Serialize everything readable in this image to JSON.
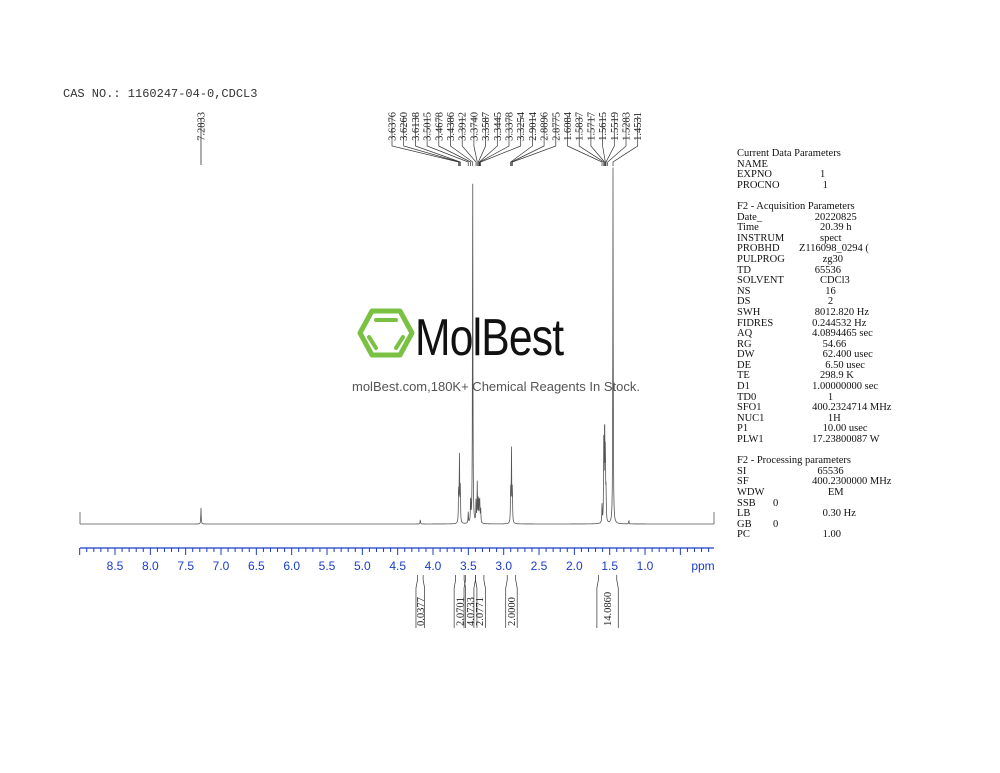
{
  "header": {
    "cas": "CAS NO.: 1160247-04-0,CDCL3"
  },
  "watermark": {
    "logo_text": "MolBest",
    "tagline": "molBest.com,180K+ Chemical Reagents In Stock.",
    "logo_color": "#7ac143"
  },
  "parameters": [
    {
      "title": "Current Data Parameters",
      "rows": [
        [
          "NAME",
          ""
        ],
        [
          "EXPNO",
          "        1"
        ],
        [
          "PROCNO",
          "         1"
        ]
      ]
    },
    {
      "title": "F2 - Acquisition Parameters",
      "rows": [
        [
          "Date_",
          "      20220825"
        ],
        [
          "Time",
          "        20.39 h"
        ],
        [
          "INSTRUM",
          "        spect"
        ],
        [
          "PROBHD",
          "Z116098_0294 ("
        ],
        [
          "PULPROG",
          "         zg30"
        ],
        [
          "TD",
          "      65536"
        ],
        [
          "SOLVENT",
          "        CDCl3"
        ],
        [
          "NS",
          "          16"
        ],
        [
          "DS",
          "           2"
        ],
        [
          "SWH",
          "      8012.820 Hz"
        ],
        [
          "FIDRES",
          "     0.244532 Hz"
        ],
        [
          "AQ",
          "     4.0894465 sec"
        ],
        [
          "RG",
          "         54.66"
        ],
        [
          "DW",
          "         62.400 usec"
        ],
        [
          "DE",
          "          6.50 usec"
        ],
        [
          "TE",
          "        298.9 K"
        ],
        [
          "D1",
          "     1.00000000 sec"
        ],
        [
          "TD0",
          "           1"
        ],
        [
          "SFO1",
          "     400.2324714 MHz"
        ],
        [
          "NUC1",
          "           1H"
        ],
        [
          "P1",
          "         10.00 usec"
        ],
        [
          "PLW1",
          "     17.23800087 W"
        ]
      ]
    },
    {
      "title": "F2 - Processing parameters",
      "rows": [
        [
          "SI",
          "       65536"
        ],
        [
          "SF",
          "     400.2300000 MHz"
        ],
        [
          "WDW",
          "           EM"
        ],
        [
          "SSB",
          "0"
        ],
        [
          "LB",
          "         0.30 Hz"
        ],
        [
          "GB",
          "0"
        ],
        [
          "PC",
          "         1.00"
        ]
      ]
    }
  ],
  "chart_data": {
    "type": "line",
    "title": "",
    "xlabel": "ppm",
    "xlim": [
      9.0,
      0.0
    ],
    "x_reversed": true,
    "grid": false,
    "axis_color": "#1a3cc8",
    "tick_labels": [
      "8.5",
      "8.0",
      "7.5",
      "7.0",
      "6.5",
      "6.0",
      "5.5",
      "5.0",
      "4.5",
      "4.0",
      "3.5",
      "3.0",
      "2.5",
      "2.0",
      "1.5",
      "1.0"
    ],
    "peaks": [
      {
        "ppm": 7.2833,
        "intensity": 0.045
      },
      {
        "ppm": 4.18,
        "intensity": 0.012
      },
      {
        "ppm": 3.6376,
        "intensity": 0.1
      },
      {
        "ppm": 3.626,
        "intensity": 0.19
      },
      {
        "ppm": 3.6138,
        "intensity": 0.1
      },
      {
        "ppm": 3.5015,
        "intensity": 0.03
      },
      {
        "ppm": 3.4678,
        "intensity": 0.07
      },
      {
        "ppm": 3.4386,
        "intensity": 1.0
      },
      {
        "ppm": 3.3912,
        "intensity": 0.06
      },
      {
        "ppm": 3.374,
        "intensity": 0.11
      },
      {
        "ppm": 3.3587,
        "intensity": 0.07
      },
      {
        "ppm": 3.3445,
        "intensity": 0.06
      },
      {
        "ppm": 3.3378,
        "intensity": 0.05
      },
      {
        "ppm": 3.3254,
        "intensity": 0.04
      },
      {
        "ppm": 2.9014,
        "intensity": 0.1
      },
      {
        "ppm": 2.8896,
        "intensity": 0.2
      },
      {
        "ppm": 2.8775,
        "intensity": 0.1
      },
      {
        "ppm": 1.6084,
        "intensity": 0.05
      },
      {
        "ppm": 1.5837,
        "intensity": 0.22
      },
      {
        "ppm": 1.5717,
        "intensity": 0.29
      },
      {
        "ppm": 1.5615,
        "intensity": 0.2
      },
      {
        "ppm": 1.5519,
        "intensity": 0.08
      },
      {
        "ppm": 1.4531,
        "intensity": 0.99
      },
      {
        "ppm": 1.2283,
        "intensity": 0.01
      }
    ],
    "peak_labels": [
      {
        "text": "7.2833",
        "ppm": 7.2833
      },
      {
        "text": "3.6376",
        "ppm": 3.6376
      },
      {
        "text": "3.6260",
        "ppm": 3.626
      },
      {
        "text": "3.6138",
        "ppm": 3.6138
      },
      {
        "text": "3.5015",
        "ppm": 3.5015
      },
      {
        "text": "3.4678",
        "ppm": 3.4678
      },
      {
        "text": "3.4386",
        "ppm": 3.4386
      },
      {
        "text": "3.3912",
        "ppm": 3.3912
      },
      {
        "text": "3.3740",
        "ppm": 3.374
      },
      {
        "text": "3.3587",
        "ppm": 3.3587
      },
      {
        "text": "3.3445",
        "ppm": 3.3445
      },
      {
        "text": "3.3378",
        "ppm": 3.3378
      },
      {
        "text": "3.3254",
        "ppm": 3.3254
      },
      {
        "text": "2.9014",
        "ppm": 2.9014
      },
      {
        "text": "2.8896",
        "ppm": 2.8896
      },
      {
        "text": "2.8775",
        "ppm": 2.8775
      },
      {
        "text": "1.6084",
        "ppm": 1.6084
      },
      {
        "text": "1.5837",
        "ppm": 1.5837
      },
      {
        "text": "1.5717",
        "ppm": 1.5717
      },
      {
        "text": "1.5615",
        "ppm": 1.5615
      },
      {
        "text": "1.5519",
        "ppm": 1.5519
      },
      {
        "text": "1.5283",
        "ppm": 1.5283
      },
      {
        "text": "1.4531",
        "ppm": 1.4531
      }
    ],
    "integrals": [
      {
        "value": "0.0377",
        "from": 4.22,
        "to": 4.14
      },
      {
        "value": "2.0701",
        "from": 3.68,
        "to": 3.56
      },
      {
        "value": "4.0733",
        "from": 3.54,
        "to": 3.4
      },
      {
        "value": "2.0771",
        "from": 3.4,
        "to": 3.28
      },
      {
        "value": "2.0000",
        "from": 2.95,
        "to": 2.83
      },
      {
        "value": "14.0860",
        "from": 1.66,
        "to": 1.4
      }
    ]
  }
}
